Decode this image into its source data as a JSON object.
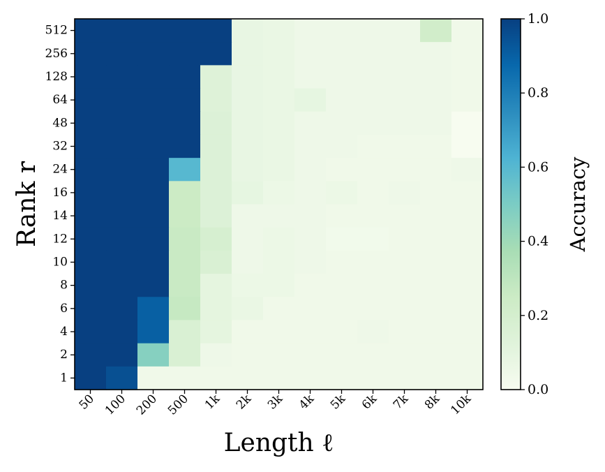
{
  "chart_data": {
    "type": "heatmap",
    "xlabel": "Length ℓ",
    "ylabel": "Rank r",
    "x_categories": [
      "50",
      "100",
      "200",
      "500",
      "1k",
      "2k",
      "3k",
      "4k",
      "5k",
      "6k",
      "7k",
      "8k",
      "10k"
    ],
    "y_categories": [
      "512",
      "256",
      "128",
      "64",
      "48",
      "32",
      "24",
      "16",
      "14",
      "12",
      "10",
      "8",
      "6",
      "4",
      "2",
      "1"
    ],
    "values": [
      [
        1.0,
        1.0,
        1.0,
        1.0,
        1.0,
        0.08,
        0.07,
        0.05,
        0.05,
        0.05,
        0.05,
        0.22,
        0.04
      ],
      [
        1.0,
        1.0,
        1.0,
        1.0,
        1.0,
        0.08,
        0.07,
        0.05,
        0.05,
        0.05,
        0.05,
        0.05,
        0.04
      ],
      [
        1.0,
        1.0,
        1.0,
        1.0,
        0.14,
        0.08,
        0.07,
        0.05,
        0.05,
        0.05,
        0.05,
        0.05,
        0.04
      ],
      [
        1.0,
        1.0,
        1.0,
        1.0,
        0.14,
        0.08,
        0.07,
        0.09,
        0.05,
        0.05,
        0.05,
        0.05,
        0.04
      ],
      [
        1.0,
        1.0,
        1.0,
        1.0,
        0.15,
        0.08,
        0.07,
        0.05,
        0.05,
        0.05,
        0.05,
        0.05,
        0.0
      ],
      [
        1.0,
        1.0,
        1.0,
        1.0,
        0.15,
        0.08,
        0.07,
        0.05,
        0.05,
        0.04,
        0.04,
        0.04,
        0.0
      ],
      [
        1.0,
        1.0,
        1.0,
        0.6,
        0.15,
        0.08,
        0.07,
        0.05,
        0.04,
        0.04,
        0.04,
        0.04,
        0.05
      ],
      [
        1.0,
        1.0,
        1.0,
        0.25,
        0.15,
        0.09,
        0.06,
        0.05,
        0.06,
        0.04,
        0.05,
        0.04,
        0.04
      ],
      [
        1.0,
        1.0,
        1.0,
        0.25,
        0.15,
        0.05,
        0.05,
        0.05,
        0.04,
        0.04,
        0.04,
        0.04,
        0.04
      ],
      [
        1.0,
        1.0,
        1.0,
        0.26,
        0.19,
        0.05,
        0.06,
        0.05,
        0.03,
        0.03,
        0.04,
        0.04,
        0.04
      ],
      [
        1.0,
        1.0,
        1.0,
        0.26,
        0.17,
        0.05,
        0.06,
        0.05,
        0.04,
        0.04,
        0.04,
        0.04,
        0.04
      ],
      [
        1.0,
        1.0,
        1.0,
        0.26,
        0.1,
        0.06,
        0.06,
        0.04,
        0.04,
        0.04,
        0.04,
        0.04,
        0.04
      ],
      [
        1.0,
        1.0,
        0.9,
        0.27,
        0.1,
        0.07,
        0.04,
        0.04,
        0.04,
        0.04,
        0.04,
        0.04,
        0.04
      ],
      [
        1.0,
        1.0,
        0.9,
        0.17,
        0.1,
        0.04,
        0.04,
        0.04,
        0.04,
        0.05,
        0.04,
        0.04,
        0.04
      ],
      [
        1.0,
        1.0,
        0.47,
        0.17,
        0.05,
        0.04,
        0.04,
        0.04,
        0.04,
        0.04,
        0.04,
        0.04,
        0.04
      ],
      [
        1.0,
        0.95,
        0.04,
        0.04,
        0.04,
        0.04,
        0.04,
        0.04,
        0.04,
        0.04,
        0.04,
        0.04,
        0.04
      ]
    ],
    "colorbar": {
      "label": "Accuracy",
      "range": [
        0.0,
        1.0
      ],
      "ticks": [
        "0.0",
        "0.2",
        "0.4",
        "0.6",
        "0.8",
        "1.0"
      ],
      "colormap": "GnBu",
      "color_stops": [
        "#f7fcf0",
        "#e0f3db",
        "#ccebc5",
        "#a8ddb5",
        "#7bccc4",
        "#4eb3d3",
        "#2b8cbe",
        "#0868ac",
        "#084081"
      ]
    }
  }
}
